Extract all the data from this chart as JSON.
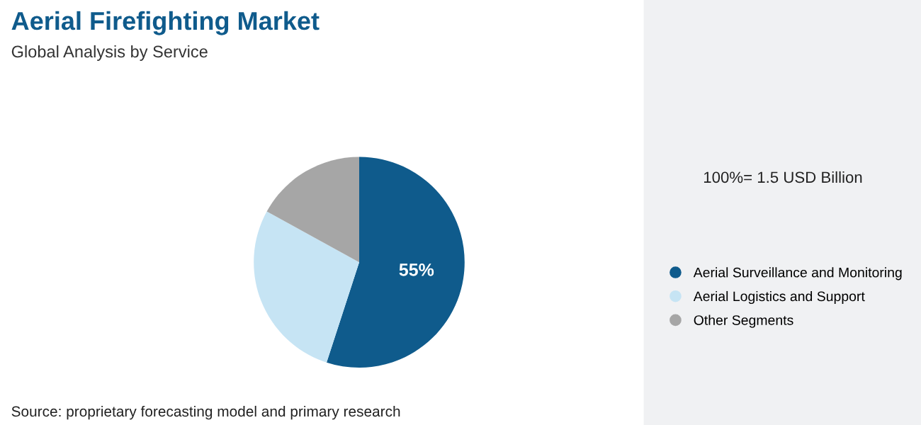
{
  "chart_data": {
    "type": "pie",
    "title": "Aerial Firefighting Market",
    "subtitle": "Global Analysis by Service",
    "categories": [
      "Aerial Surveillance and Monitoring",
      "Aerial Logistics and Support",
      "Other Segments"
    ],
    "values": [
      55,
      28,
      17
    ],
    "colors": [
      "#0f5b8c",
      "#c6e4f4",
      "#a6a6a6"
    ],
    "value_labels": [
      "55%",
      null,
      null
    ],
    "legend": "right",
    "annotations": [
      "100%= 1.5 USD Billion",
      "Source: proprietary forecasting model and primary research"
    ]
  }
}
